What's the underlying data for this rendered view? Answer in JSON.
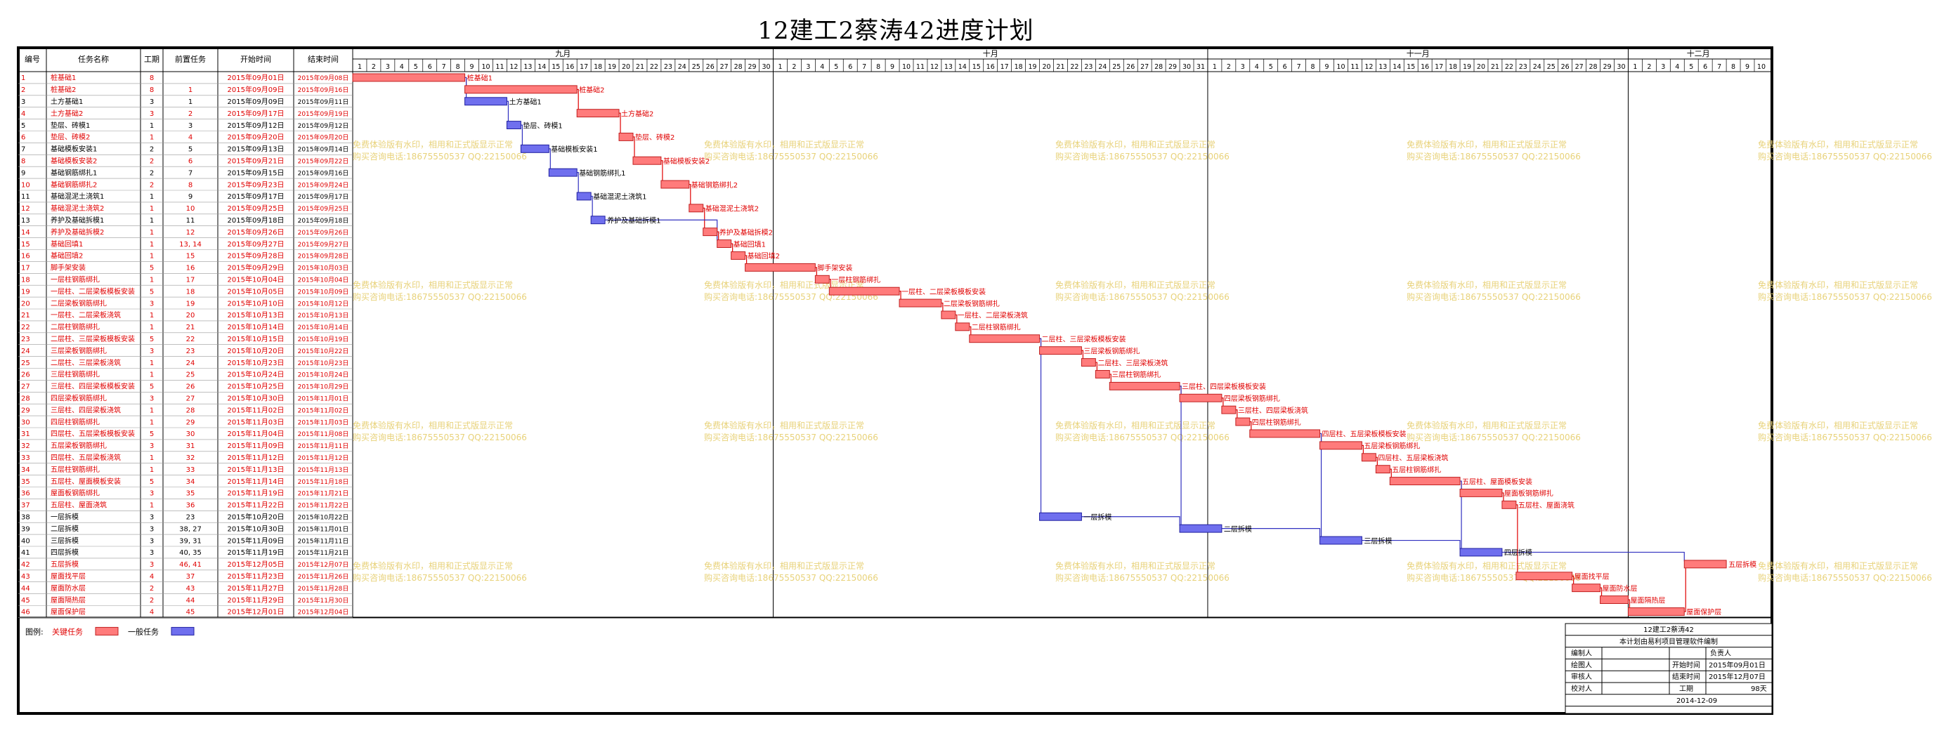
{
  "title": "12建工2蔡涛42进度计划",
  "columns": [
    "编号",
    "任务名称",
    "工期",
    "前置任务",
    "开始时间",
    "结束时间"
  ],
  "months": [
    "九月",
    "十月",
    "十一月",
    "十二月"
  ],
  "legend": {
    "label": "图例:",
    "critical": "关键任务",
    "normal": "一般任务"
  },
  "colors": {
    "critical": "#ff7b7b",
    "normal": "#6f6fee",
    "critical_text": "#e00000",
    "normal_text": "#000000",
    "link": "#3030c0",
    "link_critical": "#e00000"
  },
  "info_table": {
    "project": "12建工2蔡涛42",
    "subtitle": "本计划由易利项目管理软件编制",
    "labels": [
      "编制人",
      "绘图人",
      "审核人",
      "校对人"
    ],
    "responsible": "负责人",
    "start_label": "开始时间",
    "start_value": "2015年09月01日",
    "end_label": "结束时间",
    "end_value": "2015年12月07日",
    "duration_label": "工期",
    "duration_value": "98天",
    "footer_date": "2014-12-09"
  },
  "watermark": {
    "line1": "免费体验版有水印，相用和正式版显示正常",
    "line2": "购买咨询电话:18675550537 QQ:22150066"
  },
  "chart_data": {
    "type": "gantt",
    "x_start": "2015-09-01",
    "x_end": "2015-12-10",
    "tasks": [
      {
        "id": "1",
        "name": "桩基础1",
        "duration": 8,
        "pred": "",
        "start": "2015年09月01日",
        "end": "2015年09月08日",
        "critical": true
      },
      {
        "id": "2",
        "name": "桩基础2",
        "duration": 8,
        "pred": "1",
        "start": "2015年09月09日",
        "end": "2015年09月16日",
        "critical": true
      },
      {
        "id": "3",
        "name": "土方基础1",
        "duration": 3,
        "pred": "1",
        "start": "2015年09月09日",
        "end": "2015年09月11日",
        "critical": false
      },
      {
        "id": "4",
        "name": "土方基础2",
        "duration": 3,
        "pred": "2",
        "start": "2015年09月17日",
        "end": "2015年09月19日",
        "critical": true
      },
      {
        "id": "5",
        "name": "垫层、砖模1",
        "duration": 1,
        "pred": "3",
        "start": "2015年09月12日",
        "end": "2015年09月12日",
        "critical": false
      },
      {
        "id": "6",
        "name": "垫层、砖模2",
        "duration": 1,
        "pred": "4",
        "start": "2015年09月20日",
        "end": "2015年09月20日",
        "critical": true
      },
      {
        "id": "7",
        "name": "基础模板安装1",
        "duration": 2,
        "pred": "5",
        "start": "2015年09月13日",
        "end": "2015年09月14日",
        "critical": false
      },
      {
        "id": "8",
        "name": "基础模板安装2",
        "duration": 2,
        "pred": "6",
        "start": "2015年09月21日",
        "end": "2015年09月22日",
        "critical": true
      },
      {
        "id": "9",
        "name": "基础钢筋绑扎1",
        "duration": 2,
        "pred": "7",
        "start": "2015年09月15日",
        "end": "2015年09月16日",
        "critical": false
      },
      {
        "id": "10",
        "name": "基础钢筋绑扎2",
        "duration": 2,
        "pred": "8",
        "start": "2015年09月23日",
        "end": "2015年09月24日",
        "critical": true
      },
      {
        "id": "11",
        "name": "基础混泥土浇筑1",
        "duration": 1,
        "pred": "9",
        "start": "2015年09月17日",
        "end": "2015年09月17日",
        "critical": false
      },
      {
        "id": "12",
        "name": "基础混泥土浇筑2",
        "duration": 1,
        "pred": "10",
        "start": "2015年09月25日",
        "end": "2015年09月25日",
        "critical": true
      },
      {
        "id": "13",
        "name": "养护及基础拆模1",
        "duration": 1,
        "pred": "11",
        "start": "2015年09月18日",
        "end": "2015年09月18日",
        "critical": false
      },
      {
        "id": "14",
        "name": "养护及基础拆模2",
        "duration": 1,
        "pred": "12",
        "start": "2015年09月26日",
        "end": "2015年09月26日",
        "critical": true
      },
      {
        "id": "15",
        "name": "基础回填1",
        "duration": 1,
        "pred": "13, 14",
        "start": "2015年09月27日",
        "end": "2015年09月27日",
        "critical": true
      },
      {
        "id": "16",
        "name": "基础回填2",
        "duration": 1,
        "pred": "15",
        "start": "2015年09月28日",
        "end": "2015年09月28日",
        "critical": true
      },
      {
        "id": "17",
        "name": "脚手架安装",
        "duration": 5,
        "pred": "16",
        "start": "2015年09月29日",
        "end": "2015年10月03日",
        "critical": true
      },
      {
        "id": "18",
        "name": "一层柱钢筋绑扎",
        "duration": 1,
        "pred": "17",
        "start": "2015年10月04日",
        "end": "2015年10月04日",
        "critical": true
      },
      {
        "id": "19",
        "name": "一层柱、二层梁板模板安装",
        "duration": 5,
        "pred": "18",
        "start": "2015年10月05日",
        "end": "2015年10月09日",
        "critical": true
      },
      {
        "id": "20",
        "name": "二层梁板钢筋绑扎",
        "duration": 3,
        "pred": "19",
        "start": "2015年10月10日",
        "end": "2015年10月12日",
        "critical": true
      },
      {
        "id": "21",
        "name": "一层柱、二层梁板浇筑",
        "duration": 1,
        "pred": "20",
        "start": "2015年10月13日",
        "end": "2015年10月13日",
        "critical": true
      },
      {
        "id": "22",
        "name": "二层柱钢筋绑扎",
        "duration": 1,
        "pred": "21",
        "start": "2015年10月14日",
        "end": "2015年10月14日",
        "critical": true
      },
      {
        "id": "23",
        "name": "二层柱、三层梁板模板安装",
        "duration": 5,
        "pred": "22",
        "start": "2015年10月15日",
        "end": "2015年10月19日",
        "critical": true
      },
      {
        "id": "24",
        "name": "三层梁板钢筋绑扎",
        "duration": 3,
        "pred": "23",
        "start": "2015年10月20日",
        "end": "2015年10月22日",
        "critical": true
      },
      {
        "id": "25",
        "name": "二层柱、三层梁板浇筑",
        "duration": 1,
        "pred": "24",
        "start": "2015年10月23日",
        "end": "2015年10月23日",
        "critical": true
      },
      {
        "id": "26",
        "name": "三层柱钢筋绑扎",
        "duration": 1,
        "pred": "25",
        "start": "2015年10月24日",
        "end": "2015年10月24日",
        "critical": true
      },
      {
        "id": "27",
        "name": "三层柱、四层梁板模板安装",
        "duration": 5,
        "pred": "26",
        "start": "2015年10月25日",
        "end": "2015年10月29日",
        "critical": true
      },
      {
        "id": "28",
        "name": "四层梁板钢筋绑扎",
        "duration": 3,
        "pred": "27",
        "start": "2015年10月30日",
        "end": "2015年11月01日",
        "critical": true
      },
      {
        "id": "29",
        "name": "三层柱、四层梁板浇筑",
        "duration": 1,
        "pred": "28",
        "start": "2015年11月02日",
        "end": "2015年11月02日",
        "critical": true
      },
      {
        "id": "30",
        "name": "四层柱钢筋绑扎",
        "duration": 1,
        "pred": "29",
        "start": "2015年11月03日",
        "end": "2015年11月03日",
        "critical": true
      },
      {
        "id": "31",
        "name": "四层柱、五层梁板模板安装",
        "duration": 5,
        "pred": "30",
        "start": "2015年11月04日",
        "end": "2015年11月08日",
        "critical": true
      },
      {
        "id": "32",
        "name": "五层梁板钢筋绑扎",
        "duration": 3,
        "pred": "31",
        "start": "2015年11月09日",
        "end": "2015年11月11日",
        "critical": true
      },
      {
        "id": "33",
        "name": "四层柱、五层梁板浇筑",
        "duration": 1,
        "pred": "32",
        "start": "2015年11月12日",
        "end": "2015年11月12日",
        "critical": true
      },
      {
        "id": "34",
        "name": "五层柱钢筋绑扎",
        "duration": 1,
        "pred": "33",
        "start": "2015年11月13日",
        "end": "2015年11月13日",
        "critical": true
      },
      {
        "id": "35",
        "name": "五层柱、屋面模板安装",
        "duration": 5,
        "pred": "34",
        "start": "2015年11月14日",
        "end": "2015年11月18日",
        "critical": true
      },
      {
        "id": "36",
        "name": "屋面板钢筋绑扎",
        "duration": 3,
        "pred": "35",
        "start": "2015年11月19日",
        "end": "2015年11月21日",
        "critical": true
      },
      {
        "id": "37",
        "name": "五层柱、屋面浇筑",
        "duration": 1,
        "pred": "36",
        "start": "2015年11月22日",
        "end": "2015年11月22日",
        "critical": true
      },
      {
        "id": "38",
        "name": "一层拆模",
        "duration": 3,
        "pred": "23",
        "start": "2015年10月20日",
        "end": "2015年10月22日",
        "critical": false
      },
      {
        "id": "39",
        "name": "二层拆模",
        "duration": 3,
        "pred": "38, 27",
        "start": "2015年10月30日",
        "end": "2015年11月01日",
        "critical": false
      },
      {
        "id": "40",
        "name": "三层拆模",
        "duration": 3,
        "pred": "39, 31",
        "start": "2015年11月09日",
        "end": "2015年11月11日",
        "critical": false
      },
      {
        "id": "41",
        "name": "四层拆模",
        "duration": 3,
        "pred": "40, 35",
        "start": "2015年11月19日",
        "end": "2015年11月21日",
        "critical": false
      },
      {
        "id": "42",
        "name": "五层拆模",
        "duration": 3,
        "pred": "46, 41",
        "start": "2015年12月05日",
        "end": "2015年12月07日",
        "critical": true
      },
      {
        "id": "43",
        "name": "屋面找平层",
        "duration": 4,
        "pred": "37",
        "start": "2015年11月23日",
        "end": "2015年11月26日",
        "critical": true
      },
      {
        "id": "44",
        "name": "屋面防水层",
        "duration": 2,
        "pred": "43",
        "start": "2015年11月27日",
        "end": "2015年11月28日",
        "critical": true
      },
      {
        "id": "45",
        "name": "屋面隔热层",
        "duration": 2,
        "pred": "44",
        "start": "2015年11月29日",
        "end": "2015年11月30日",
        "critical": true
      },
      {
        "id": "46",
        "name": "屋面保护层",
        "duration": 4,
        "pred": "45",
        "start": "2015年12月01日",
        "end": "2015年12月04日",
        "critical": true
      }
    ]
  }
}
